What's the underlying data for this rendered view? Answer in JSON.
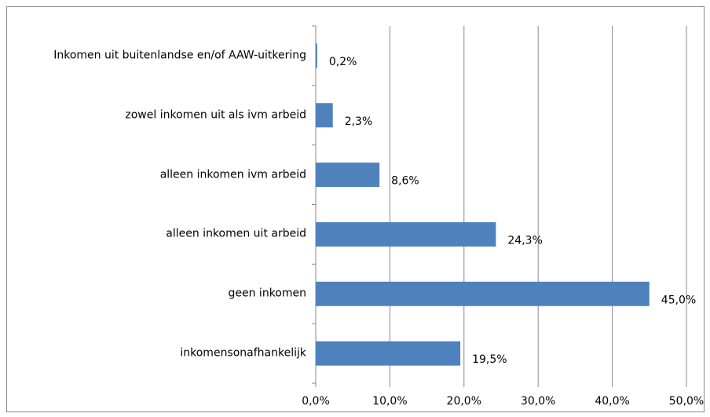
{
  "chart_data": {
    "type": "bar",
    "orientation": "horizontal",
    "categories": [
      "Inkomen uit buitenlandse en/of AAW-uitkering",
      "zowel inkomen uit als ivm arbeid",
      "alleen inkomen ivm arbeid",
      "alleen inkomen uit arbeid",
      "geen inkomen",
      "inkomensonafhankelijk"
    ],
    "values": [
      0.2,
      2.3,
      8.6,
      24.3,
      45.0,
      19.5
    ],
    "value_labels": [
      "0,2%",
      "2,3%",
      "8,6%",
      "24,3%",
      "45,0%",
      "19,5%"
    ],
    "color": "#4f81bd",
    "xlim": [
      0,
      50
    ],
    "xticks": [
      {
        "value": 0,
        "label": "0,0%"
      },
      {
        "value": 10,
        "label": "10,0%"
      },
      {
        "value": 20,
        "label": "20,0%"
      },
      {
        "value": 30,
        "label": "30,0%"
      },
      {
        "value": 40,
        "label": "40,0%"
      },
      {
        "value": 50,
        "label": "50,0%"
      }
    ],
    "grid": true
  }
}
